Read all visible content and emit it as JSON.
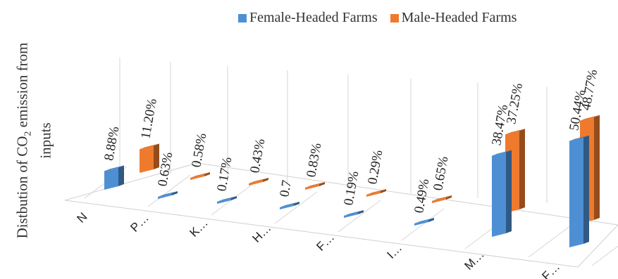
{
  "chart_data": {
    "type": "bar",
    "title": "",
    "ylabel_line1": "Distbution of CO",
    "ylabel_sub": "2",
    "ylabel_line1_end": " emission from",
    "ylabel_line2": "inputs",
    "categories": [
      "N",
      "P…",
      "K…",
      "H…",
      "F…",
      "I…",
      "M…",
      "F…"
    ],
    "series": [
      {
        "name": "Female-Headed Farms",
        "color": "#4e8fd4",
        "values": [
          8.88,
          0.63,
          0.17,
          0.73,
          0.19,
          0.49,
          38.47,
          50.44
        ],
        "labels": [
          "8.88%",
          "0.63%",
          "0.17%",
          "0.7",
          "0.19%",
          "0.49%",
          "38.47%",
          "50.44%"
        ]
      },
      {
        "name": "Male-Headed Farms",
        "color": "#ef7a2d",
        "values": [
          11.2,
          0.58,
          0.43,
          0.83,
          0.29,
          0.65,
          37.25,
          48.77
        ],
        "labels": [
          "11.20%",
          "0.58%",
          "0.43%",
          "0.83%",
          "0.29%",
          "0.65%",
          "37.25%",
          "48.77%"
        ]
      }
    ],
    "grid": true,
    "legend_position": "top"
  }
}
